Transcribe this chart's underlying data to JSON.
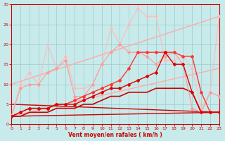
{
  "xlabel": "Vent moyen/en rafales ( km/h )",
  "bg_color": "#c8eaea",
  "grid_color": "#99cccc",
  "xlim": [
    0,
    23
  ],
  "ylim": [
    0,
    30
  ],
  "yticks": [
    0,
    5,
    10,
    15,
    20,
    25,
    30
  ],
  "xticks": [
    0,
    1,
    2,
    3,
    4,
    5,
    6,
    7,
    8,
    9,
    10,
    11,
    12,
    13,
    14,
    15,
    16,
    17,
    18,
    19,
    20,
    21,
    22,
    23
  ],
  "lines": [
    {
      "x": [
        0,
        23
      ],
      "y": [
        2,
        14
      ],
      "color": "#ffaaaa",
      "lw": 1.0,
      "marker": null,
      "ms": 0,
      "zorder": 2
    },
    {
      "x": [
        0,
        23
      ],
      "y": [
        10,
        27
      ],
      "color": "#ffaaaa",
      "lw": 1.0,
      "marker": null,
      "ms": 0,
      "zorder": 2
    },
    {
      "x": [
        0,
        23
      ],
      "y": [
        2,
        3
      ],
      "color": "#cc0000",
      "lw": 1.0,
      "marker": null,
      "ms": 0,
      "zorder": 3
    },
    {
      "x": [
        0,
        23
      ],
      "y": [
        5,
        3
      ],
      "color": "#cc0000",
      "lw": 1.0,
      "marker": null,
      "ms": 0,
      "zorder": 3
    },
    {
      "x": [
        0,
        1,
        2,
        3,
        4,
        5,
        6,
        7,
        8,
        9,
        10,
        11,
        12,
        13,
        14,
        15,
        16,
        17,
        18,
        19,
        20,
        21,
        22,
        23
      ],
      "y": [
        2,
        10,
        13,
        10,
        20,
        14,
        17,
        9,
        9,
        10,
        15,
        24,
        20,
        25,
        29,
        27,
        27,
        16,
        16,
        17,
        14,
        4,
        8,
        27
      ],
      "color": "#ffbbbb",
      "lw": 0.8,
      "marker": "D",
      "ms": 1.8,
      "zorder": 3
    },
    {
      "x": [
        0,
        1,
        2,
        3,
        4,
        5,
        6,
        7,
        8,
        9,
        10,
        11,
        12,
        13,
        14,
        15,
        16,
        17,
        18,
        19,
        20,
        21,
        22,
        23
      ],
      "y": [
        2,
        9,
        10,
        10,
        13,
        14,
        16,
        7,
        7,
        10,
        15,
        18,
        20,
        18,
        18,
        17,
        15,
        17,
        18,
        15,
        4,
        3,
        8,
        7
      ],
      "color": "#ff9999",
      "lw": 0.8,
      "marker": "D",
      "ms": 1.8,
      "zorder": 4
    },
    {
      "x": [
        0,
        1,
        2,
        3,
        4,
        5,
        6,
        7,
        8,
        9,
        10,
        11,
        12,
        13,
        14,
        15,
        16,
        17,
        18,
        19,
        20,
        21,
        22,
        23
      ],
      "y": [
        2,
        3,
        4,
        4,
        4,
        5,
        5,
        6,
        7,
        8,
        9,
        10,
        11,
        14,
        18,
        18,
        18,
        18,
        18,
        17,
        17,
        8,
        3,
        3
      ],
      "color": "#ff3333",
      "lw": 1.0,
      "marker": "D",
      "ms": 2.0,
      "zorder": 5
    },
    {
      "x": [
        0,
        1,
        2,
        3,
        4,
        5,
        6,
        7,
        8,
        9,
        10,
        11,
        12,
        13,
        14,
        15,
        16,
        17,
        18,
        19,
        20,
        21,
        22,
        23
      ],
      "y": [
        2,
        3,
        4,
        4,
        4,
        5,
        5,
        5,
        6,
        7,
        8,
        9,
        9,
        10,
        11,
        12,
        13,
        18,
        15,
        15,
        8,
        3,
        3,
        3
      ],
      "color": "#dd0000",
      "lw": 1.0,
      "marker": "D",
      "ms": 2.0,
      "zorder": 6
    },
    {
      "x": [
        0,
        1,
        2,
        3,
        4,
        5,
        6,
        7,
        8,
        9,
        10,
        11,
        12,
        13,
        14,
        15,
        16,
        17,
        18,
        19,
        20,
        21,
        22,
        23
      ],
      "y": [
        2,
        2,
        3,
        3,
        3,
        4,
        4,
        4,
        5,
        5,
        6,
        7,
        7,
        8,
        8,
        8,
        9,
        9,
        9,
        9,
        8,
        3,
        3,
        3
      ],
      "color": "#cc0000",
      "lw": 1.2,
      "marker": null,
      "ms": 0,
      "zorder": 3
    }
  ]
}
